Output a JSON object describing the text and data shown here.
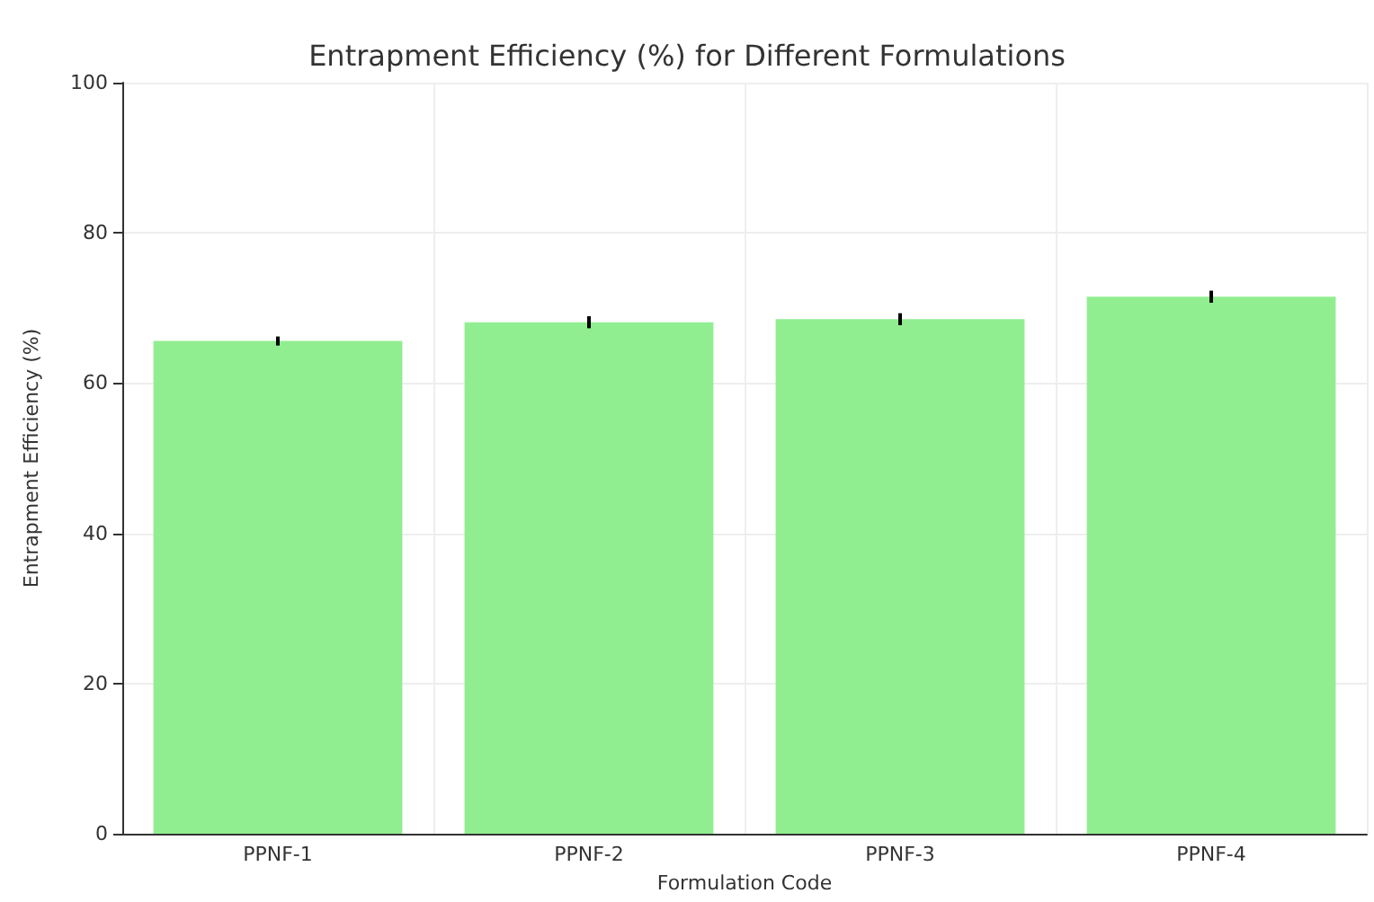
{
  "chart_data": {
    "type": "bar",
    "title": "Entrapment Efficiency (%) for Different Formulations",
    "xlabel": "Formulation Code",
    "ylabel": "Entrapment Efficiency (%)",
    "categories": [
      "PPNF-1",
      "PPNF-2",
      "PPNF-3",
      "PPNF-4"
    ],
    "values": [
      65.6,
      68.1,
      68.5,
      71.5
    ],
    "errors": [
      0.6,
      0.8,
      0.8,
      0.8
    ],
    "color": "#90ee90",
    "ylim": [
      0,
      100
    ],
    "yticks": [
      0,
      20,
      40,
      60,
      80,
      100
    ],
    "grid": true
  }
}
